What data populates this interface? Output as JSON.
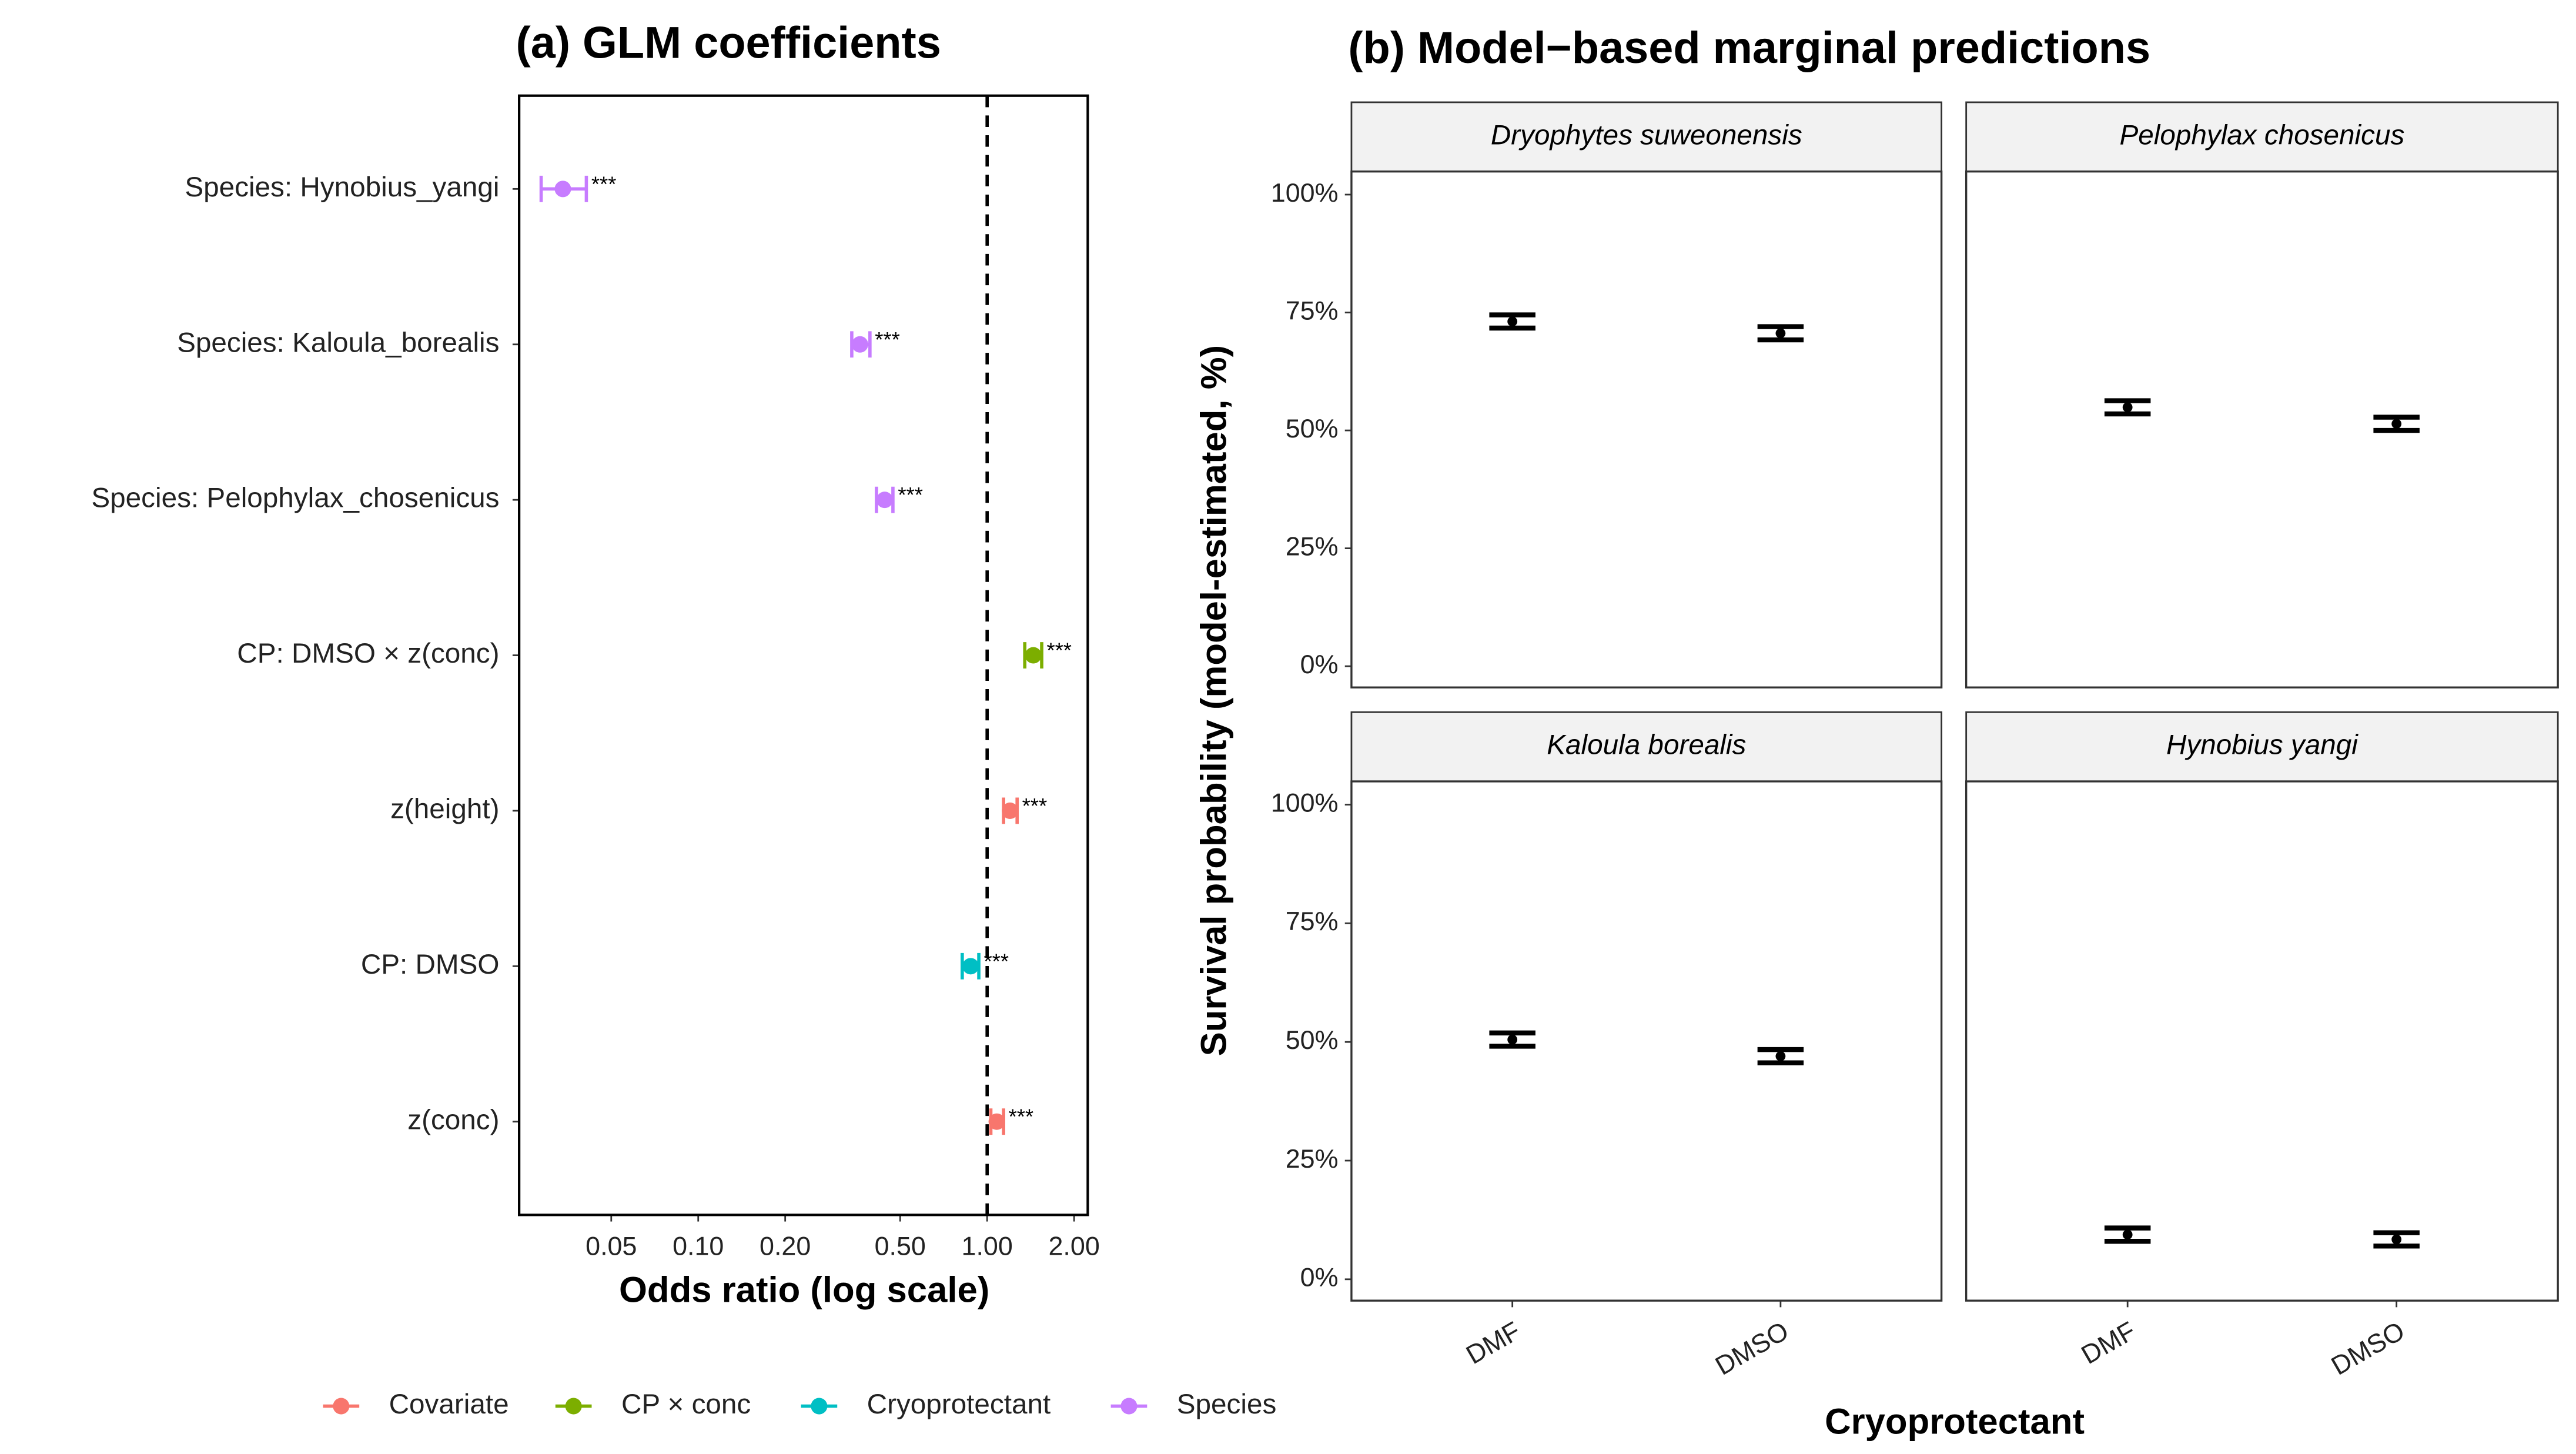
{
  "chart_data": [
    {
      "type": "forest",
      "title": "(a) GLM coefficients",
      "x_label": "Odds ratio (log scale)",
      "categories": [
        "Species: Hynobius_yangi",
        "Species: Kaloula_borealis",
        "Species: Pelophylax_chosenicus",
        "CP: DMSO × z(conc)",
        "z(height)",
        "CP: DMSO",
        "z(conc)"
      ],
      "series": [
        {
          "name": "Covariate",
          "color": "#F8766D",
          "values": [
            null,
            null,
            null,
            null,
            1.2,
            null,
            1.08
          ],
          "lower": [
            null,
            null,
            null,
            null,
            1.14,
            null,
            1.03
          ],
          "upper": [
            null,
            null,
            null,
            null,
            1.27,
            null,
            1.14
          ],
          "annotations": [
            null,
            null,
            null,
            null,
            "***",
            null,
            "***"
          ]
        },
        {
          "name": "CP × conc",
          "color": "#7CAE00",
          "values": [
            null,
            null,
            null,
            1.445,
            null,
            null,
            null
          ],
          "lower": [
            null,
            null,
            null,
            1.35,
            null,
            null,
            null
          ],
          "upper": [
            null,
            null,
            null,
            1.545,
            null,
            null,
            null
          ],
          "annotations": [
            null,
            null,
            null,
            "***",
            null,
            null,
            null
          ]
        },
        {
          "name": "Cryoprotectant",
          "color": "#00BFC4",
          "values": [
            null,
            null,
            null,
            null,
            null,
            0.877,
            null
          ],
          "lower": [
            null,
            null,
            null,
            null,
            null,
            0.82,
            null
          ],
          "upper": [
            null,
            null,
            null,
            null,
            null,
            0.936,
            null
          ],
          "annotations": [
            null,
            null,
            null,
            null,
            null,
            "***",
            null
          ]
        },
        {
          "name": "Species",
          "color": "#C77CFF",
          "values": [
            0.034,
            0.363,
            0.442,
            null,
            null,
            null,
            null
          ],
          "lower": [
            0.0286,
            0.34,
            0.414,
            null,
            null,
            null,
            null
          ],
          "upper": [
            0.041,
            0.393,
            0.472,
            null,
            null,
            null,
            null
          ],
          "annotations": [
            "***",
            "***",
            "***",
            null,
            null,
            null,
            null
          ]
        }
      ],
      "x_scale": "log",
      "xlim": [
        0.024,
        2.23
      ],
      "xticks": [
        0.05,
        {
          "value": 0.1,
          "label": "0.10"
        },
        {
          "value": 0.2,
          "label": "0.20"
        },
        {
          "value": 0.5,
          "label": "0.50"
        },
        {
          "value": 1,
          "label": "1.00"
        },
        {
          "value": 2,
          "label": "2.00"
        }
      ],
      "reference_line": 1,
      "legend": "bottom"
    },
    {
      "type": "facet-errorbar",
      "title": "(b) Model−based marginal predictions",
      "x_label": "Cryoprotectant",
      "y_label": "Survival probability (model-estimated, %)",
      "categories": [
        "DMF",
        "DMSO"
      ],
      "color": "#000000",
      "series": [
        {
          "name": "Dryophytes suweonensis",
          "values": [
            73.1,
            70.6
          ],
          "lower": [
            71.7,
            69.2
          ],
          "upper": [
            74.5,
            72
          ]
        },
        {
          "name": "Pelophylax chosenicus",
          "values": [
            54.9,
            51.4
          ],
          "lower": [
            53.5,
            50
          ],
          "upper": [
            56.3,
            52.8
          ]
        },
        {
          "name": "Kaloula borealis",
          "values": [
            50.5,
            47
          ],
          "lower": [
            49.1,
            45.6
          ],
          "upper": [
            51.9,
            48.4
          ]
        },
        {
          "name": "Hynobius yangi",
          "values": [
            9.4,
            8.4
          ],
          "lower": [
            8,
            7
          ],
          "upper": [
            10.8,
            9.8
          ]
        }
      ],
      "ylim": [
        -4.5,
        104.9
      ],
      "yticks": [
        {
          "value": 0,
          "label": "0%"
        },
        {
          "value": 25,
          "label": "25%"
        },
        {
          "value": 50,
          "label": "50%"
        },
        {
          "value": 75,
          "label": "75%"
        },
        {
          "value": 100,
          "label": "100%"
        }
      ]
    }
  ]
}
